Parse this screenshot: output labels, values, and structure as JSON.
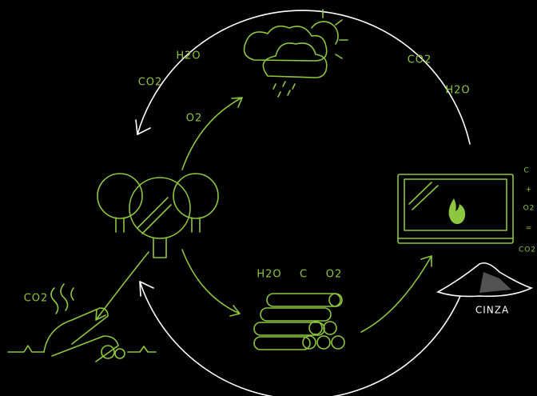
{
  "labels": [
    "H2O",
    "CO2",
    "O2",
    "CO2",
    "H2O",
    "C",
    "+",
    "O2",
    "=",
    "CO2",
    "H2O",
    "C",
    "O2",
    "CO2",
    "CINZA"
  ]
}
